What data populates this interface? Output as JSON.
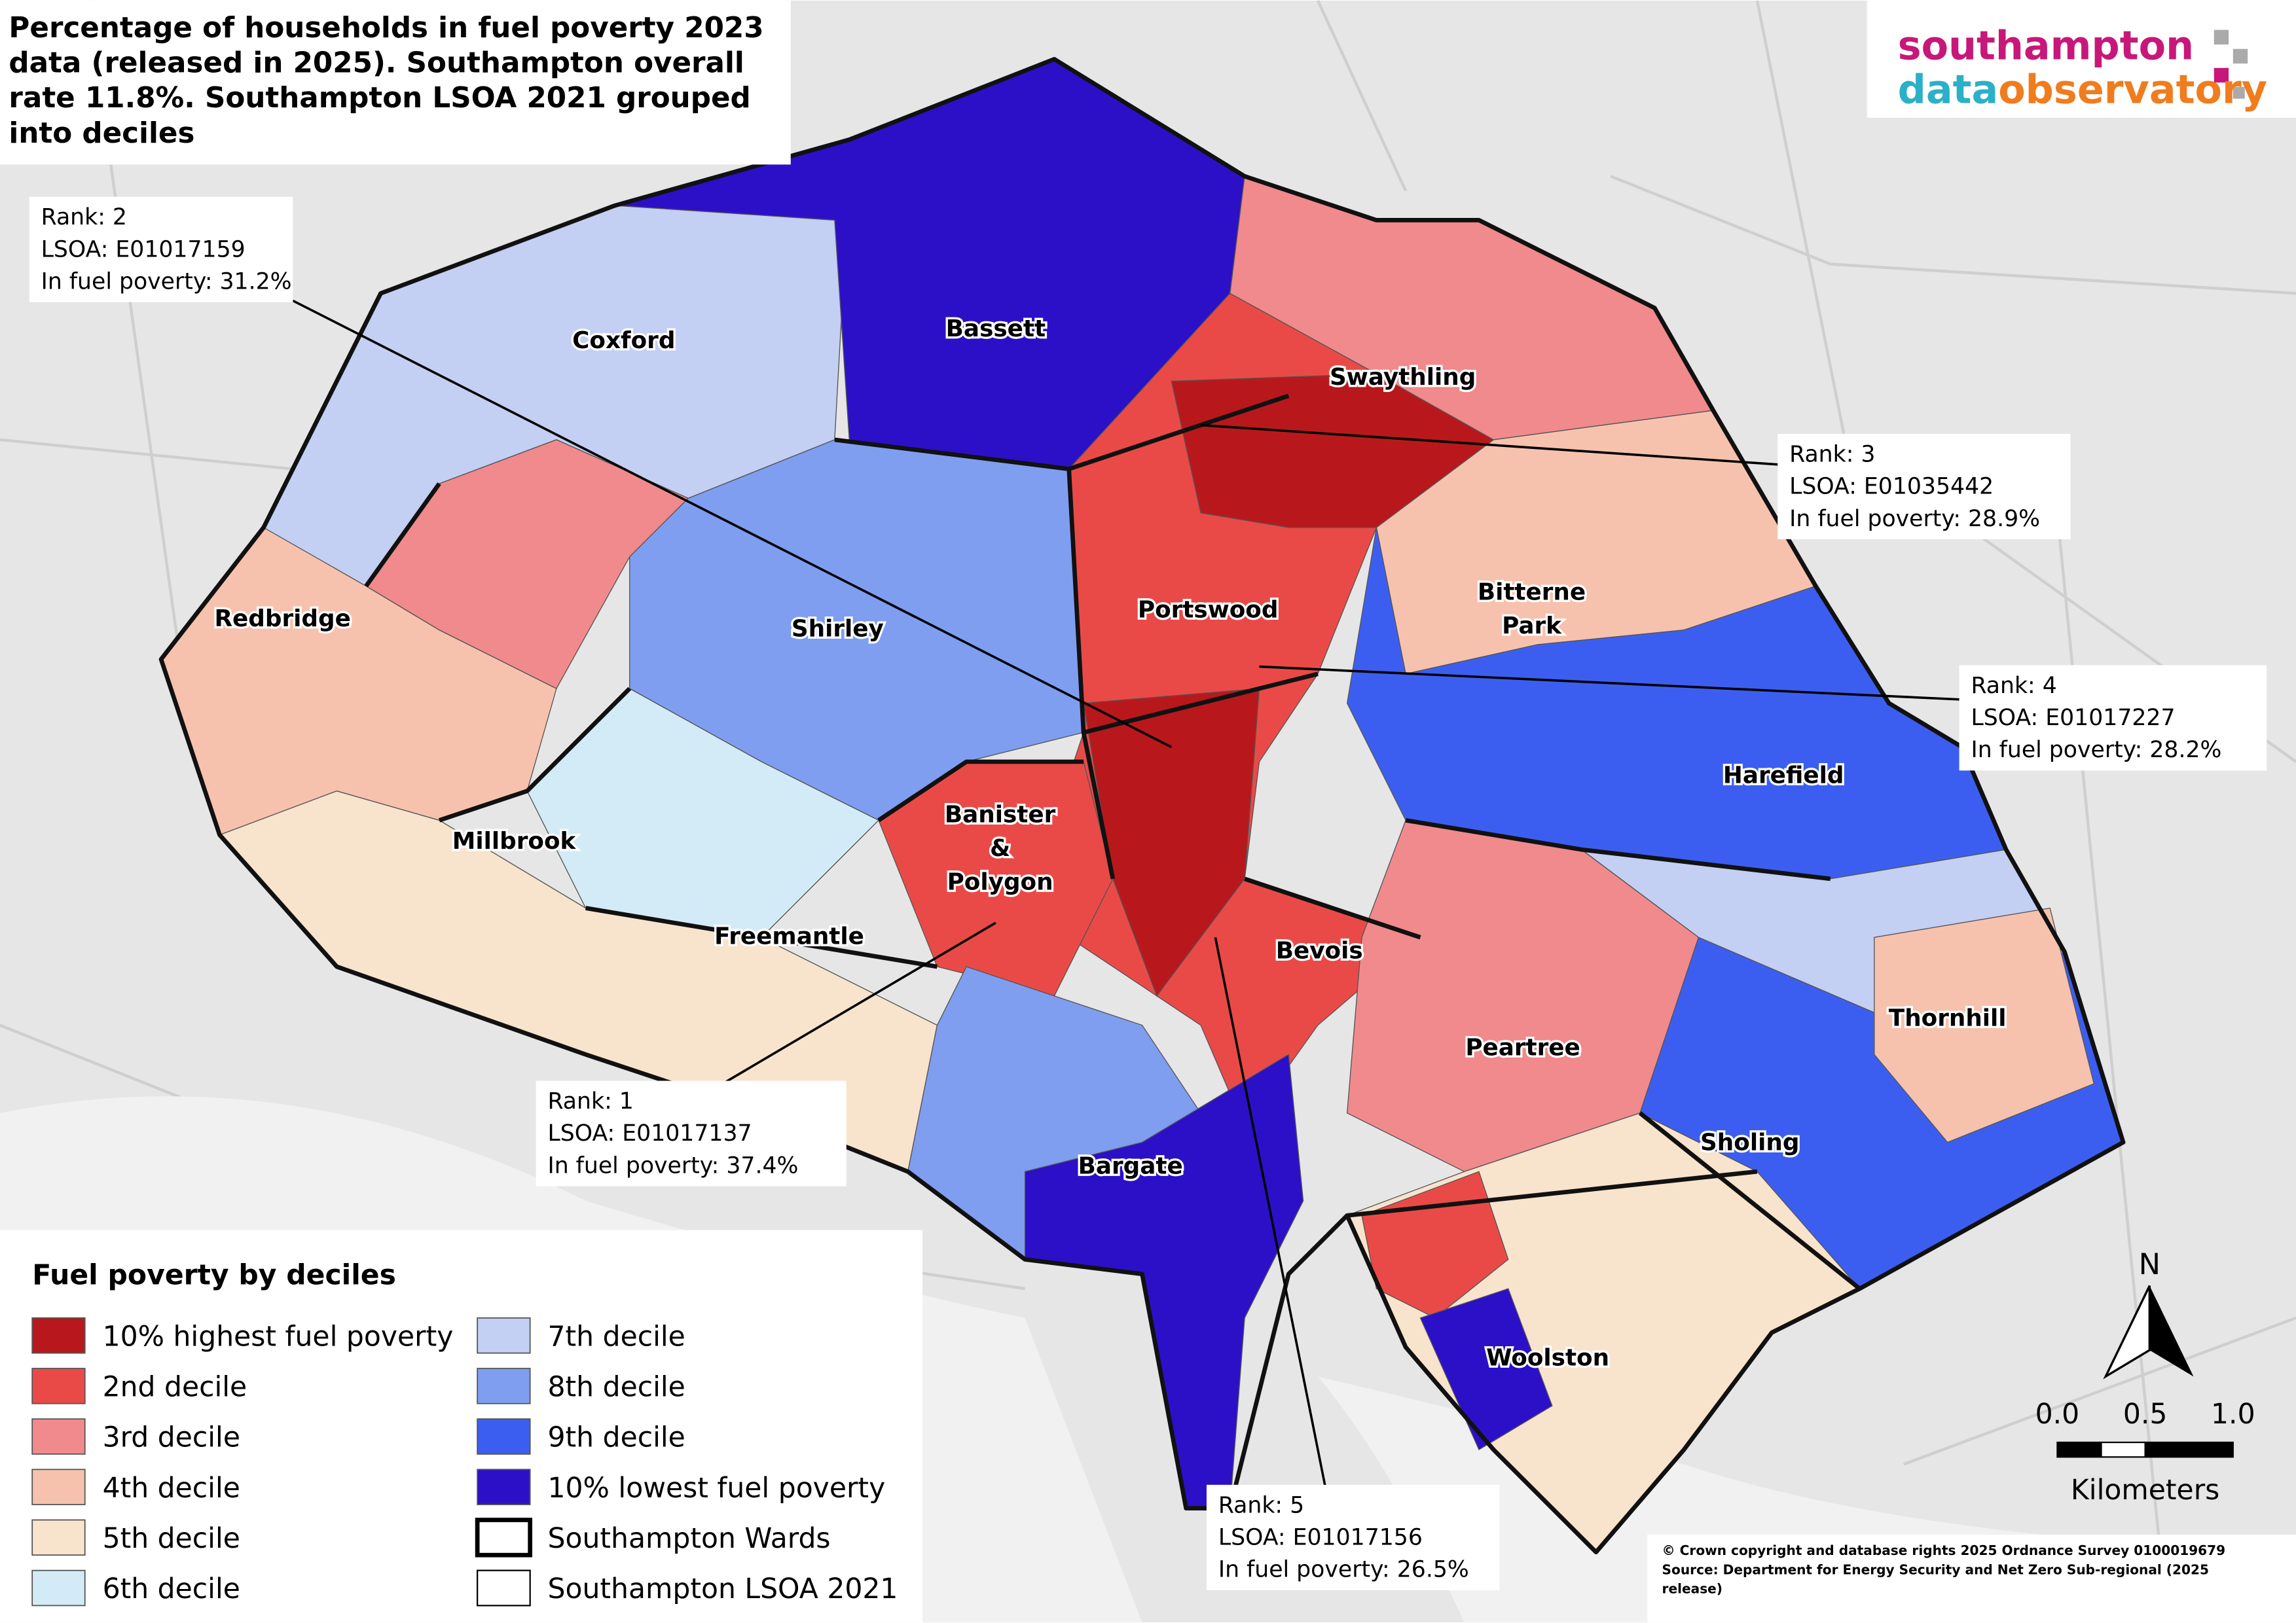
{
  "title": [
    "Percentage of households in fuel poverty 2023",
    "data (released in 2025). Southampton overall",
    "rate 11.8%. Southampton LSOA 2021 grouped",
    "into deciles"
  ],
  "logo": {
    "line1": "southampton",
    "line2a": "data",
    "line2b": "observatory"
  },
  "wards": [
    [
      "Coxford"
    ],
    [
      "Bassett"
    ],
    [
      "Swaythling"
    ],
    [
      "Redbridge"
    ],
    [
      "Shirley"
    ],
    [
      "Portswood"
    ],
    [
      "Bitterne",
      "Park"
    ],
    [
      "Harefield"
    ],
    [
      "Millbrook"
    ],
    [
      "Banister",
      "&",
      "Polygon"
    ],
    [
      "Freemantle"
    ],
    [
      "Bevois"
    ],
    [
      "Peartree"
    ],
    [
      "Thornhill"
    ],
    [
      "Sholing"
    ],
    [
      "Bargate"
    ],
    [
      "Woolston"
    ]
  ],
  "callouts": [
    {
      "rank": "Rank: 2",
      "lsoa": "LSOA: E01017159",
      "value": "In fuel poverty: 31.2%"
    },
    {
      "rank": "Rank: 3",
      "lsoa": "LSOA: E01035442",
      "value": "In fuel poverty: 28.9%"
    },
    {
      "rank": "Rank: 4",
      "lsoa": "LSOA: E01017227",
      "value": "In fuel poverty: 28.2%"
    },
    {
      "rank": "Rank: 1",
      "lsoa": "LSOA: E01017137",
      "value": "In fuel poverty: 37.4%"
    },
    {
      "rank": "Rank: 5",
      "lsoa": "LSOA: E01017156",
      "value": "In fuel poverty: 26.5%"
    }
  ],
  "legend": {
    "title": "Fuel poverty by deciles",
    "items": [
      {
        "label": "10% highest fuel poverty",
        "color": "#b8181c"
      },
      {
        "label": "2nd decile",
        "color": "#ea4a47"
      },
      {
        "label": "3rd decile",
        "color": "#f08a8c"
      },
      {
        "label": "4th decile",
        "color": "#f6c2ae"
      },
      {
        "label": "5th decile",
        "color": "#f8e3cd"
      },
      {
        "label": "6th decile",
        "color": "#d3ebf6"
      },
      {
        "label": "7th decile",
        "color": "#c3cff3"
      },
      {
        "label": "8th decile",
        "color": "#7f9ef0"
      },
      {
        "label": "9th decile",
        "color": "#3c5ef0"
      },
      {
        "label": "10% lowest fuel poverty",
        "color": "#2c10c8"
      },
      {
        "label": "Southampton Wards",
        "color": "#ffffff"
      },
      {
        "label": "Southampton LSOA 2021",
        "color": "#ffffff"
      }
    ]
  },
  "north": "N",
  "scale": {
    "ticks": [
      "0.0",
      "0.5",
      "1.0"
    ],
    "unit": "Kilometers"
  },
  "credits": [
    "© Crown copyright and database rights 2025 Ordnance Survey 0100019679",
    "Source: Department for Energy Security and Net Zero Sub-regional (2025",
    "release)"
  ]
}
